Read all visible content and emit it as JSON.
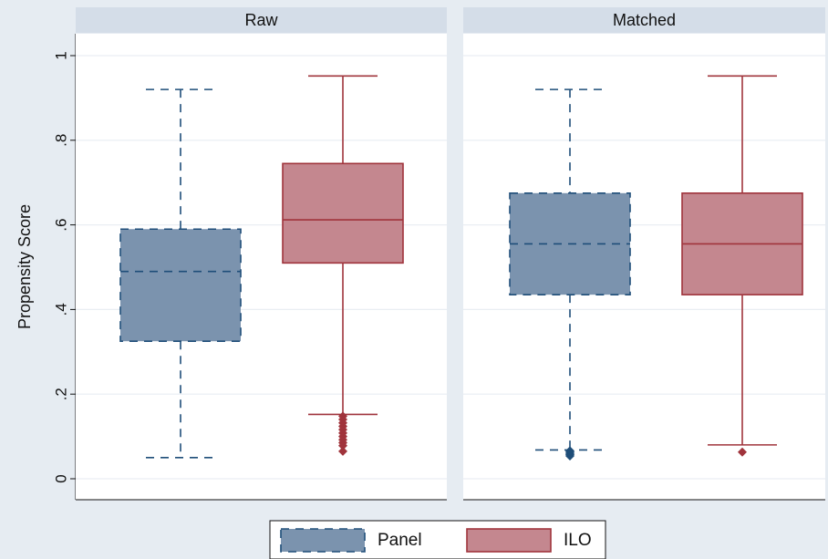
{
  "chart_data": {
    "type": "box",
    "ylabel": "Propensity Score",
    "ylim": [
      0,
      1.05
    ],
    "yticks": [
      {
        "value": 0,
        "label": "0"
      },
      {
        "value": 0.2,
        "label": ".2"
      },
      {
        "value": 0.4,
        "label": ".4"
      },
      {
        "value": 0.6,
        "label": ".6"
      },
      {
        "value": 0.8,
        "label": ".8"
      },
      {
        "value": 1.0,
        "label": "1"
      }
    ],
    "grid": true,
    "legend": {
      "position": "bottom",
      "entries": [
        "Panel",
        "ILO"
      ]
    },
    "series_styles": [
      {
        "name": "Panel",
        "fill": "#7b93ae",
        "stroke": "#1f4e79",
        "dashed": true
      },
      {
        "name": "ILO",
        "fill": "#c4878f",
        "stroke": "#a0343c",
        "dashed": false
      }
    ],
    "panels": [
      {
        "title": "Raw",
        "boxes": [
          {
            "series": "Panel",
            "whisker_low": 0.05,
            "q1": 0.325,
            "median": 0.49,
            "q3": 0.59,
            "whisker_high": 0.92,
            "outliers": []
          },
          {
            "series": "ILO",
            "whisker_low": 0.152,
            "q1": 0.51,
            "median": 0.612,
            "q3": 0.745,
            "whisker_high": 0.952,
            "outliers": [
              0.148,
              0.14,
              0.132,
              0.124,
              0.116,
              0.108,
              0.1,
              0.092,
              0.085,
              0.078,
              0.065
            ]
          }
        ]
      },
      {
        "title": "Matched",
        "boxes": [
          {
            "series": "Panel",
            "whisker_low": 0.068,
            "q1": 0.435,
            "median": 0.555,
            "q3": 0.675,
            "whisker_high": 0.92,
            "outliers": [
              0.066,
              0.063,
              0.06,
              0.057,
              0.054
            ]
          },
          {
            "series": "ILO",
            "whisker_low": 0.08,
            "q1": 0.435,
            "median": 0.555,
            "q3": 0.675,
            "whisker_high": 0.952,
            "outliers": [
              0.063
            ]
          }
        ]
      }
    ]
  }
}
